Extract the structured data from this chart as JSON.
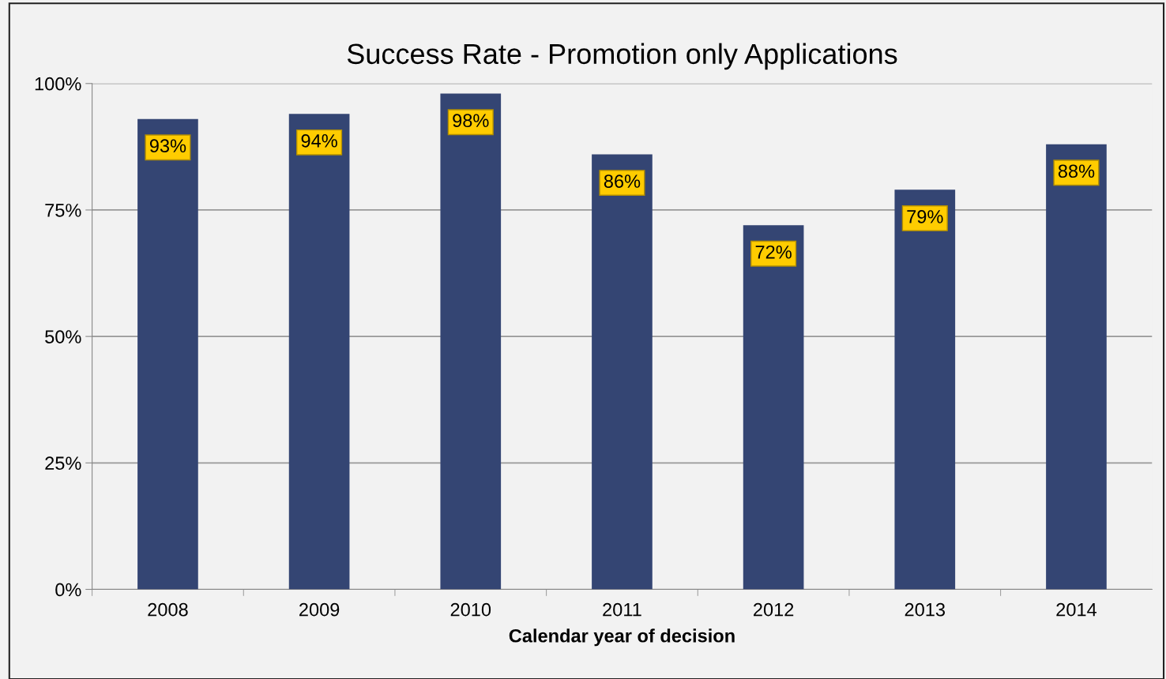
{
  "chart_data": {
    "type": "bar",
    "title": "Success Rate - Promotion only Applications",
    "xlabel": "Calendar year of decision",
    "categories": [
      "2008",
      "2009",
      "2010",
      "2011",
      "2012",
      "2013",
      "2014"
    ],
    "values": [
      93,
      94,
      98,
      86,
      72,
      79,
      88
    ],
    "value_labels": [
      "93%",
      "94%",
      "98%",
      "86%",
      "72%",
      "79%",
      "88%"
    ],
    "color": "#344573",
    "ylim": [
      0,
      100
    ],
    "yticks": [
      {
        "value": 0,
        "label": "0%"
      },
      {
        "value": 25,
        "label": "25%"
      },
      {
        "value": 50,
        "label": "50%"
      },
      {
        "value": 75,
        "label": "75%"
      },
      {
        "value": 100,
        "label": "100%"
      }
    ],
    "grid": "y",
    "legend": false
  }
}
